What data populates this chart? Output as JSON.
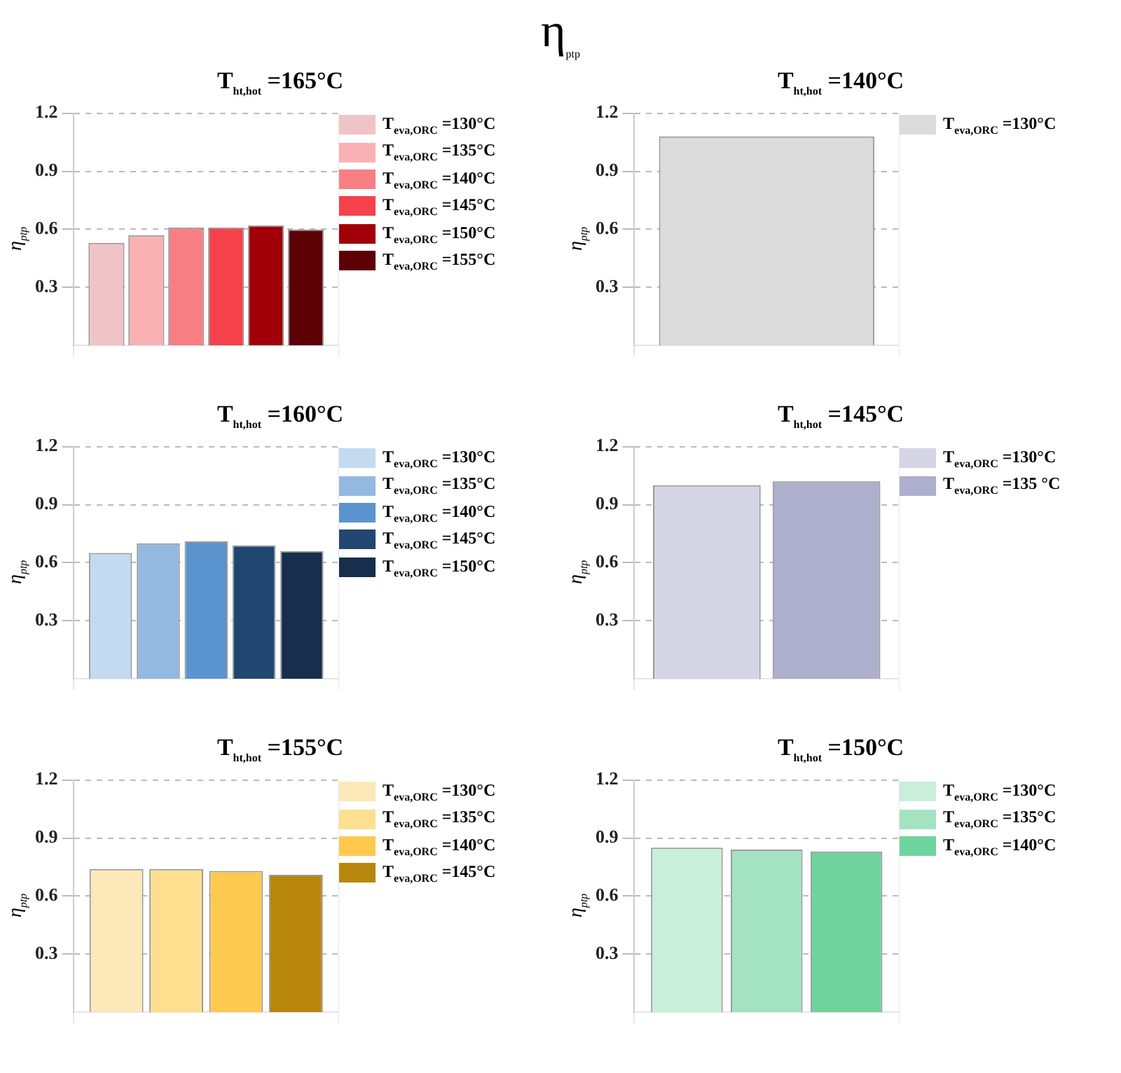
{
  "chart_data": [
    {
      "type": "bar",
      "title": "T$_{ht,hot}$ =165°C",
      "ylabel": "η$_{ptp}$",
      "annotations": [
        "η$_{ptp}$"
      ],
      "categories": [
        null
      ],
      "ylim": [
        0,
        1.2
      ],
      "yticks": [
        0.3,
        0.6,
        0.9,
        1.2
      ],
      "grid": true,
      "legend": "right",
      "series": [
        {
          "name": "T$_{eva,ORC}$ =130°C",
          "color": "#f0c4c6",
          "values": [
            0.53
          ]
        },
        {
          "name": "T$_{eva,ORC}$ =135°C",
          "color": "#f9b1b4",
          "values": [
            0.57
          ]
        },
        {
          "name": "T$_{eva,ORC}$ =140°C",
          "color": "#f77f84",
          "values": [
            0.61
          ]
        },
        {
          "name": "T$_{eva,ORC}$ =145°C",
          "color": "#f5414a",
          "values": [
            0.61
          ]
        },
        {
          "name": "T$_{eva,ORC}$ =150°C",
          "color": "#a10008",
          "values": [
            0.62
          ]
        },
        {
          "name": "T$_{eva,ORC}$ =155°C",
          "color": "#5c0006",
          "values": [
            0.6
          ]
        }
      ]
    },
    {
      "type": "bar",
      "title": "T$_{ht,hot}$ =140°C",
      "ylabel": "η$_{ptp}$",
      "categories": [
        null
      ],
      "ylim": [
        0,
        1.2
      ],
      "yticks": [
        0.3,
        0.6,
        0.9,
        1.2
      ],
      "grid": true,
      "legend": "right",
      "series": [
        {
          "name": "T$_{eva,ORC}$ =130°C",
          "color": "#dcdcdc",
          "values": [
            1.08
          ]
        }
      ]
    },
    {
      "type": "bar",
      "title": "T$_{ht,hot}$ =160°C",
      "ylabel": "η$_{ptp}$",
      "categories": [
        null
      ],
      "ylim": [
        0,
        1.2
      ],
      "yticks": [
        0.3,
        0.6,
        0.9,
        1.2
      ],
      "grid": true,
      "legend": "right",
      "series": [
        {
          "name": "T$_{eva,ORC}$ =130°C",
          "color": "#c4daf0",
          "values": [
            0.65
          ]
        },
        {
          "name": "T$_{eva,ORC}$ =135°C",
          "color": "#94b9e0",
          "values": [
            0.7
          ]
        },
        {
          "name": "T$_{eva,ORC}$ =140°C",
          "color": "#5b93cf",
          "values": [
            0.71
          ]
        },
        {
          "name": "T$_{eva,ORC}$ =145°C",
          "color": "#214670",
          "values": [
            0.69
          ]
        },
        {
          "name": "T$_{eva,ORC}$ =150°C",
          "color": "#172e4d",
          "values": [
            0.66
          ]
        }
      ]
    },
    {
      "type": "bar",
      "title": "T$_{ht,hot}$ =145°C",
      "ylabel": "η$_{ptp}$",
      "categories": [
        null
      ],
      "ylim": [
        0,
        1.2
      ],
      "yticks": [
        0.3,
        0.6,
        0.9,
        1.2
      ],
      "grid": true,
      "legend": "right",
      "series": [
        {
          "name": "T$_{eva,ORC}$ =130°C",
          "color": "#d5d5e6",
          "values": [
            1.0
          ]
        },
        {
          "name": "T$_{eva,ORC}$ =135 °C",
          "color": "#aeaecd",
          "values": [
            1.02
          ]
        }
      ]
    },
    {
      "type": "bar",
      "title": "T$_{ht,hot}$ =155°C",
      "ylabel": "η$_{ptp}$",
      "categories": [
        null
      ],
      "ylim": [
        0,
        1.2
      ],
      "yticks": [
        0.3,
        0.6,
        0.9,
        1.2
      ],
      "grid": true,
      "legend": "right",
      "series": [
        {
          "name": "T$_{eva,ORC}$ =130°C",
          "color": "#fde8b9",
          "values": [
            0.74
          ]
        },
        {
          "name": "T$_{eva,ORC}$ =135°C",
          "color": "#fddf8f",
          "values": [
            0.74
          ]
        },
        {
          "name": "T$_{eva,ORC}$ =140°C",
          "color": "#fdc94f",
          "values": [
            0.73
          ]
        },
        {
          "name": "T$_{eva,ORC}$ =145°C",
          "color": "#b8860b",
          "values": [
            0.71
          ]
        }
      ]
    },
    {
      "type": "bar",
      "title": "T$_{ht,hot}$ =150°C",
      "ylabel": "η$_{ptp}$",
      "categories": [
        null
      ],
      "ylim": [
        0,
        1.2
      ],
      "yticks": [
        0.3,
        0.6,
        0.9,
        1.2
      ],
      "grid": true,
      "legend": "right",
      "series": [
        {
          "name": "T$_{eva,ORC}$ =130°C",
          "color": "#c9eeda",
          "values": [
            0.85
          ]
        },
        {
          "name": "T$_{eva,ORC}$ =135°C",
          "color": "#a3e3c2",
          "values": [
            0.84
          ]
        },
        {
          "name": "T$_{eva,ORC}$ =140°C",
          "color": "#6fd39e",
          "values": [
            0.83
          ]
        }
      ]
    }
  ]
}
